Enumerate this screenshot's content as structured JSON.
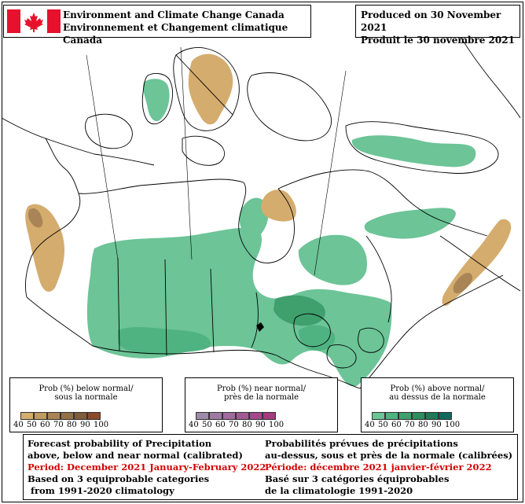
{
  "header": {
    "agency_en": "Environment and Climate Change Canada",
    "agency_fr": "Environnement et Changement climatique Canada",
    "produced_en": "Produced on 30 November 2021",
    "produced_fr": "Produit le 30 novembre 2021"
  },
  "legends": [
    {
      "title_en": "Prob (%) below normal/",
      "title_fr": "sous la normale",
      "colors": [
        "#d4ac6e",
        "#bf9a62",
        "#a88456",
        "#937046",
        "#7e5c3c",
        "#8c4a2c",
        "#7a2e22"
      ],
      "ticks": [
        "40",
        "50",
        "60",
        "70",
        "80",
        "90",
        "100"
      ]
    },
    {
      "title_en": "Prob (%) near normal/",
      "title_fr": "près de la normale",
      "colors": [
        "#9c8aa6",
        "#9e7aa2",
        "#a06a9c",
        "#a25a94",
        "#a44a8a",
        "#a63a7e",
        "#9c2a70"
      ],
      "ticks": [
        "40",
        "50",
        "60",
        "70",
        "80",
        "90",
        "100"
      ]
    },
    {
      "title_en": "Prob (%) above normal/",
      "title_fr": "au dessus de la normale",
      "colors": [
        "#6cc497",
        "#4fb381",
        "#3fa06e",
        "#2f8e5d",
        "#1f7a58",
        "#11695c",
        "#0b5c68"
      ],
      "ticks": [
        "40",
        "50",
        "60",
        "70",
        "80",
        "90",
        "100"
      ]
    }
  ],
  "info": {
    "en": {
      "line1": "Forecast probability of Precipitation",
      "line2": "above, below and near normal (calibrated)",
      "period": "Period: December 2021 January-February 2022",
      "line4": "Based on 3 equiprobable categories",
      "line5": " from 1991-2020 climatology"
    },
    "fr": {
      "line1": "Probabilités prévues de précipitations",
      "line2": "au-dessus, sous et près de la normale (calibrées)",
      "period": "Période: décembre 2021 janvier-février 2022",
      "line4": "Basé sur 3 catégories équiprobables",
      "line5": "de la climatologie 1991-2020"
    }
  },
  "colors": {
    "above_normal": "#6cc497",
    "above_normal_dark": "#3fa06e",
    "above_normal_darker": "#2f8e5d",
    "below_normal": "#d4ac6e",
    "below_normal_dark": "#a88456",
    "period_text": "#d40000"
  }
}
